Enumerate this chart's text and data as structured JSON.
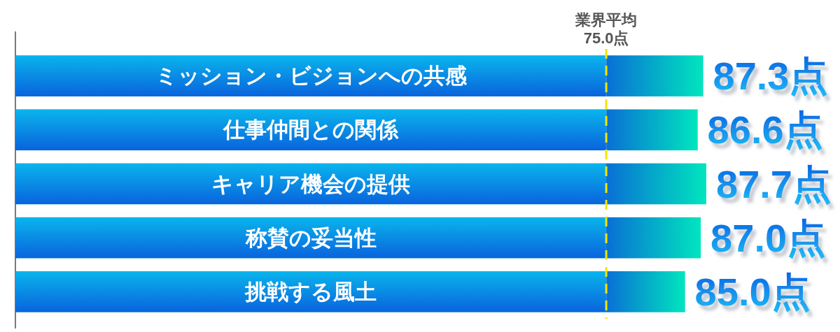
{
  "chart_data": {
    "type": "bar",
    "orientation": "horizontal",
    "tick_labels": "y",
    "categories": [
      "ミッション・ビジョンへの共感",
      "仕事仲間との関係",
      "キャリア機会の提供",
      "称賛の妥当性",
      "挑戦する風土"
    ],
    "values": [
      87.3,
      86.6,
      87.7,
      87.0,
      85.0
    ],
    "value_labels": [
      "87.3点",
      "86.6点",
      "87.7点",
      "87.0点",
      "85.0点"
    ],
    "color": "#0a7cec",
    "ref_lines": [
      {
        "axis": "x",
        "value": 75,
        "label": "業界平均\n75.0点",
        "color": "#f2e600",
        "line_style": "dashed"
      }
    ]
  }
}
